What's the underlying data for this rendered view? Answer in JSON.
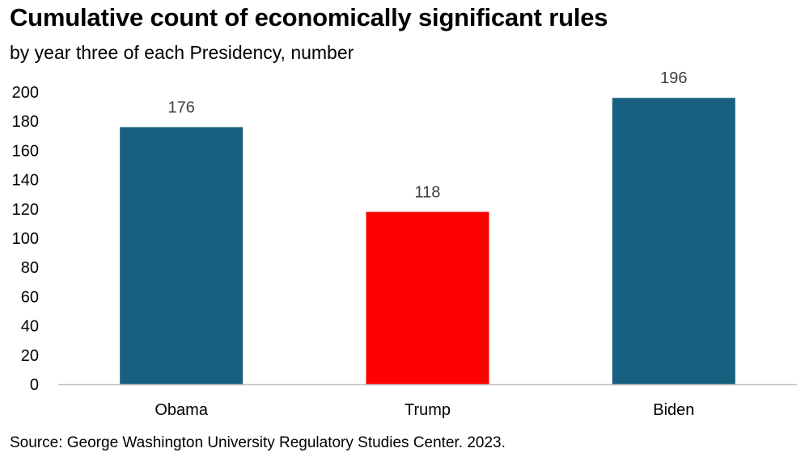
{
  "title": "Cumulative count of economically significant rules",
  "subtitle": "by year three of each Presidency, number",
  "source": "Source: George Washington University Regulatory Studies Center. 2023.",
  "chart_data": {
    "type": "bar",
    "categories": [
      "Obama",
      "Trump",
      "Biden"
    ],
    "values": [
      176,
      118,
      196
    ],
    "colors": [
      "#17607f",
      "#ff0000",
      "#17607f"
    ],
    "data_labels": [
      "176",
      "118",
      "196"
    ],
    "ylim": [
      0,
      200
    ],
    "yticks": [
      0,
      20,
      40,
      60,
      80,
      100,
      120,
      140,
      160,
      180,
      200
    ],
    "grid": false,
    "legend": "none",
    "xlabel": "",
    "ylabel": ""
  }
}
